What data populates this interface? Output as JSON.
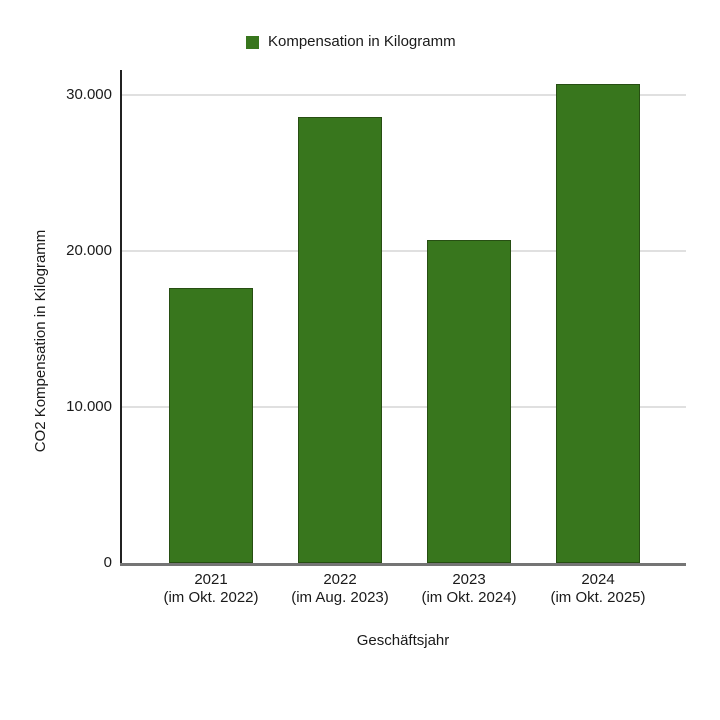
{
  "chart_data": {
    "type": "bar",
    "title": "",
    "legend": {
      "label": "Kompensation in Kilogramm",
      "position": "top",
      "swatch_color": "#38761d"
    },
    "categories": [
      {
        "label": "2021",
        "sublabel": "(im Okt. 2022)"
      },
      {
        "label": "2022",
        "sublabel": "(im Aug. 2023)"
      },
      {
        "label": "2023",
        "sublabel": "(im Okt. 2024)"
      },
      {
        "label": "2024",
        "sublabel": "(im Okt. 2025)"
      }
    ],
    "series": [
      {
        "name": "Kompensation in Kilogramm",
        "values": [
          17600,
          28600,
          20700,
          30700
        ]
      }
    ],
    "xlabel": "Geschäftsjahr",
    "ylabel": "CO2 Kompensation in Kilogramm",
    "ylim": [
      0,
      31600
    ],
    "yticks": [
      {
        "value": 0,
        "label": "0"
      },
      {
        "value": 10000,
        "label": "10.000"
      },
      {
        "value": 20000,
        "label": "20.000"
      },
      {
        "value": 30000,
        "label": "30.000"
      }
    ],
    "grid": true,
    "colors": {
      "bar_fill": "#38761d",
      "bar_border": "#274e13",
      "gridline": "#e0e0e0",
      "baseline": "#757575",
      "axis_line": "#212121",
      "text": "#1a1a1a",
      "background": "#ffffff"
    }
  }
}
